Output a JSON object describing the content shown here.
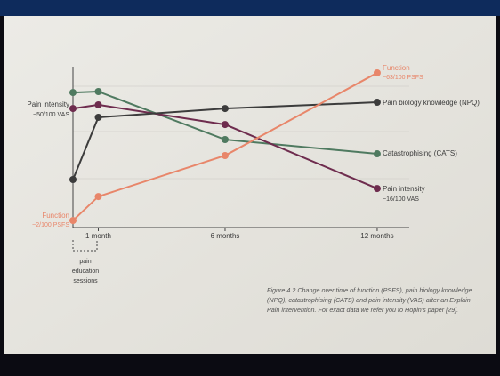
{
  "chart_data": {
    "type": "line",
    "x": [
      0,
      1,
      6,
      12
    ],
    "xlim": [
      0,
      13.3
    ],
    "ylim": [
      0,
      100
    ],
    "xticks": [
      {
        "value": 1,
        "label": "1 month"
      },
      {
        "value": 6,
        "label": "6 months"
      },
      {
        "value": 12,
        "label": "12 months"
      }
    ],
    "series": [
      {
        "name": "Function",
        "color": "#e8866a",
        "values": [
          4.4,
          19.4,
          45,
          96.7
        ]
      },
      {
        "name": "Pain biology knowledge (NPQ)",
        "color": "#3c3c3c",
        "values": [
          30,
          68.9,
          74.4,
          78.3
        ]
      },
      {
        "name": "Catastrophising (CATS)",
        "color": "#4f7a60",
        "values": [
          84.4,
          85,
          55,
          46.1
        ]
      },
      {
        "name": "Pain intensity",
        "color": "#6e2c4e",
        "values": [
          74.4,
          76.7,
          64.4,
          24.4
        ]
      }
    ],
    "annotations": [
      {
        "text": "~63/100 PSFS"
      },
      {
        "text": "~16/100 VAS"
      },
      {
        "text": "Pain intensity"
      },
      {
        "text": "~50/100 VAS"
      },
      {
        "text": "Function"
      },
      {
        "text": "~2/100 PSFS"
      }
    ],
    "bracket_label": [
      "pain",
      "education",
      "sessions"
    ],
    "caption": [
      "Figure 4.2 Change over time of function (PSFS), pain biology knowledge",
      "(NPQ), catastrophising (CATS) and pain intensity (VAS) after an Explain",
      "Pain intervention. For exact data we refer you to Hopin's paper [29]."
    ]
  }
}
